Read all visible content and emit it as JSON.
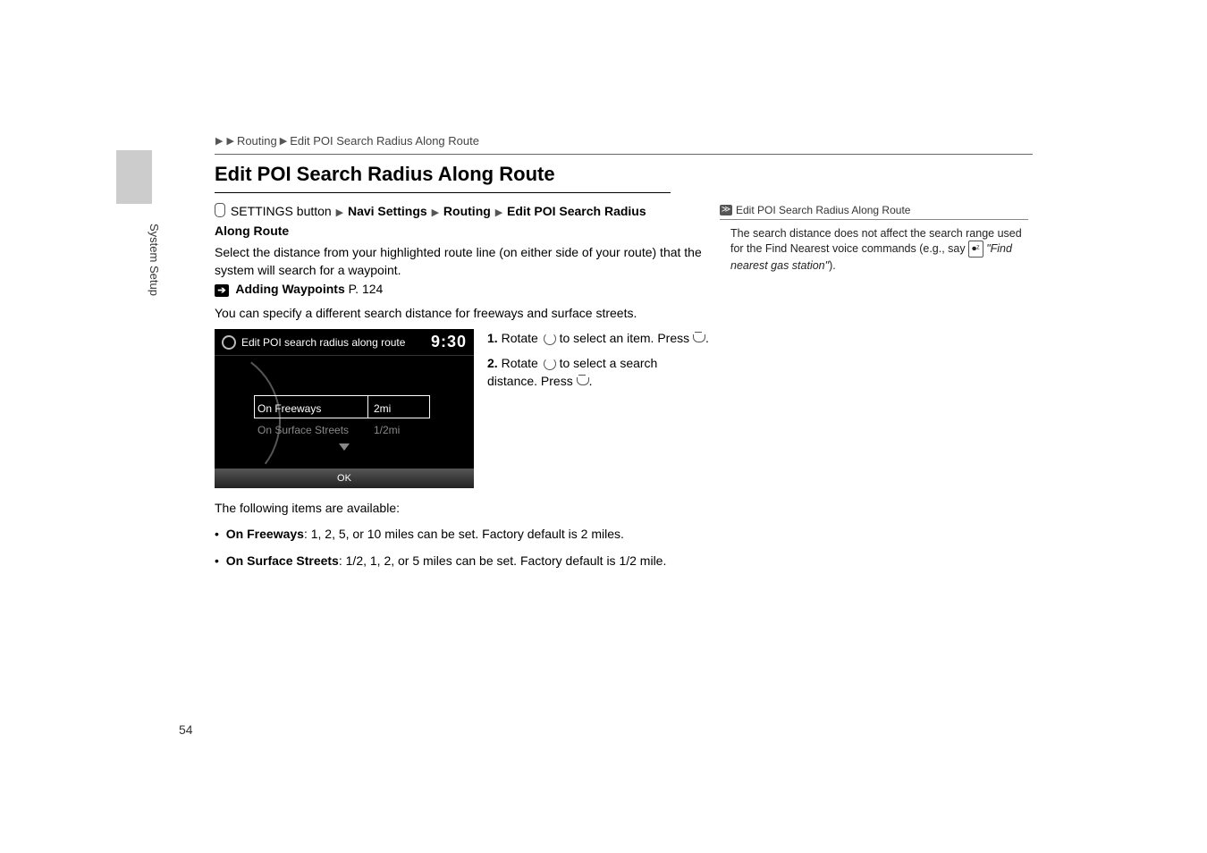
{
  "breadcrumb": {
    "level1": "Routing",
    "level2": "Edit POI Search Radius Along Route"
  },
  "title": "Edit POI Search Radius Along Route",
  "vtab": "System Setup",
  "nav_path": {
    "btn": "SETTINGS button",
    "p1": "Navi Settings",
    "p2": "Routing",
    "p3": "Edit POI Search Radius Along Route"
  },
  "body1_a": "Select the distance from your highlighted route line (on either side of your route) that the system will search for a waypoint.",
  "xref_label": "Adding Waypoints",
  "xref_page": "P. 124",
  "body2": "You can specify a different search distance for freeways and surface streets.",
  "screenshot": {
    "header": "Edit POI search radius along route",
    "time": "9:30",
    "row1_label": "On Freeways",
    "row1_val": "2mi",
    "row2_label": "On Surface Streets",
    "row2_val": "1/2mi",
    "ok": "OK"
  },
  "steps": {
    "s1_a": "Rotate",
    "s1_b": "to select an item. Press",
    "s2_a": "Rotate",
    "s2_b": "to select a search distance. Press"
  },
  "following": "The following items are available:",
  "bullets": {
    "b1_label": "On Freeways",
    "b1_text": ": 1, 2, 5, or 10 miles can be set. Factory default is 2 miles.",
    "b2_label": "On Surface Streets",
    "b2_text": ": 1/2, 1, 2, or 5 miles can be set. Factory default is 1/2 mile."
  },
  "side": {
    "header": "Edit POI Search Radius Along Route",
    "body_a": "The search distance does not affect the search range used for the Find Nearest voice commands (e.g., say",
    "body_quote": "\"Find nearest gas station\"",
    "body_b": ")."
  },
  "page_num": "54"
}
